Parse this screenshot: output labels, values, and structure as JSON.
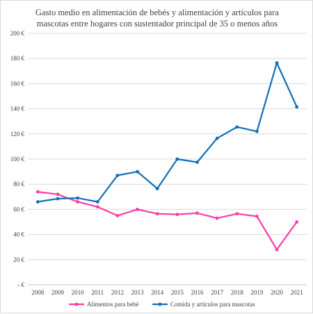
{
  "chart_data": {
    "type": "line",
    "title_lines": [
      "Gasto medio en alimentación de bebés y alimentación y artículos para",
      "mascotas entre hogares con sustentador principal de 35 o menos años"
    ],
    "categories": [
      "2008",
      "2009",
      "2010",
      "2011",
      "2012",
      "2013",
      "2014",
      "2015",
      "2016",
      "2017",
      "2018",
      "2019",
      "2020",
      "2021"
    ],
    "y_ticks": [
      "-  €",
      "20 €",
      "40 €",
      "60 €",
      "80 €",
      "100 €",
      "120 €",
      "140 €",
      "160 €",
      "180 €",
      "200 €"
    ],
    "ylim": [
      0,
      200
    ],
    "grid": true,
    "legend_position": "bottom",
    "series": [
      {
        "name": "Alimentos para bebé",
        "color": "#ff3ba7",
        "values": [
          74,
          72,
          66,
          62,
          55,
          60,
          56.5,
          56,
          57,
          53,
          56.5,
          54.5,
          28,
          50
        ]
      },
      {
        "name": "Comida y artículos para mascotas",
        "color": "#0f6fb8",
        "values": [
          66,
          68.5,
          69,
          66,
          87,
          90,
          76.5,
          100,
          97.5,
          116.5,
          125.5,
          122,
          176.5,
          141.5
        ]
      }
    ]
  }
}
